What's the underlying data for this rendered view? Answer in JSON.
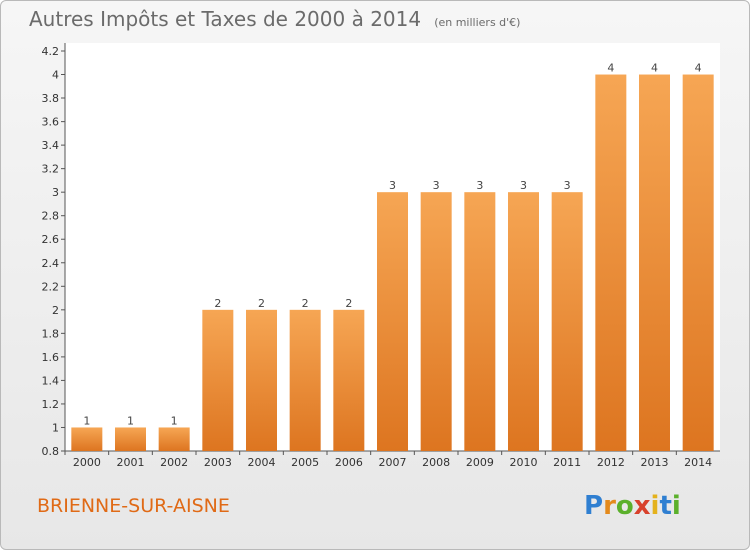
{
  "title": "Autres Impôts et Taxes de 2000 à 2014",
  "unit": "(en milliers d'€)",
  "commune": "BRIENNE-SUR-AISNE",
  "logo": "Proxiti",
  "colors": {
    "bar_light": "#f6a654",
    "bar_dark": "#dd7520",
    "title": "#6b6b6b",
    "commune": "#e06a16"
  },
  "chart_data": {
    "type": "bar",
    "categories": [
      "2000",
      "2001",
      "2002",
      "2003",
      "2004",
      "2005",
      "2006",
      "2007",
      "2008",
      "2009",
      "2010",
      "2011",
      "2012",
      "2013",
      "2014"
    ],
    "values": [
      1,
      1,
      1,
      2,
      2,
      2,
      2,
      3,
      3,
      3,
      3,
      3,
      4,
      4,
      4
    ],
    "ylim": [
      0.8,
      4.2
    ],
    "yticks": [
      "0.8",
      "1",
      "1.2",
      "1.4",
      "1.6",
      "1.8",
      "2",
      "2.2",
      "2.4",
      "2.6",
      "2.8",
      "3",
      "3.2",
      "3.4",
      "3.6",
      "3.8",
      "4",
      "4.2"
    ],
    "data_labels": [
      "1",
      "1",
      "1",
      "2",
      "2",
      "2",
      "2",
      "3",
      "3",
      "3",
      "3",
      "3",
      "4",
      "4",
      "4"
    ],
    "grid": false,
    "legend": "none"
  }
}
